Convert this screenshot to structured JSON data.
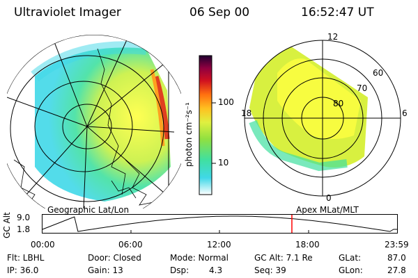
{
  "header": {
    "instrument": "Ultraviolet Imager",
    "date": "06 Sep 00",
    "time": "16:52:47 UT"
  },
  "colorbar": {
    "label": "photon cm⁻²s⁻¹",
    "ticks": [
      "100",
      "10"
    ]
  },
  "left_map": {
    "caption": "Geographic Lat/Lon"
  },
  "right_map": {
    "caption": "Apex  MLat/MLT",
    "mlt_labels": {
      "top": "12",
      "left": "18",
      "right": "6",
      "bottom": "0"
    },
    "lat_labels": [
      "60",
      "70",
      "80"
    ]
  },
  "timeline": {
    "ylabel": "GC Alt",
    "yticks": [
      "9.0",
      "1.8"
    ],
    "xticks": [
      "00:00",
      "06:00",
      "12:00",
      "18:00",
      "23:59"
    ],
    "current_marker_time": "16:52",
    "marker_color": "#ff0000"
  },
  "info": {
    "flt": "Flt: LBHL",
    "ip": "IP: 36.0",
    "door": "Door: Closed",
    "gain": "Gain: 13",
    "mode": "Mode: Normal",
    "dsp_label": "Dsp:",
    "dsp_value": "4.3",
    "gcalt": "GC Alt: 7.1 Re",
    "seq": "Seq: 39",
    "glat_label": "GLat:",
    "glat_value": "87.0",
    "glon_label": "GLon:",
    "glon_value": "27.8"
  }
}
